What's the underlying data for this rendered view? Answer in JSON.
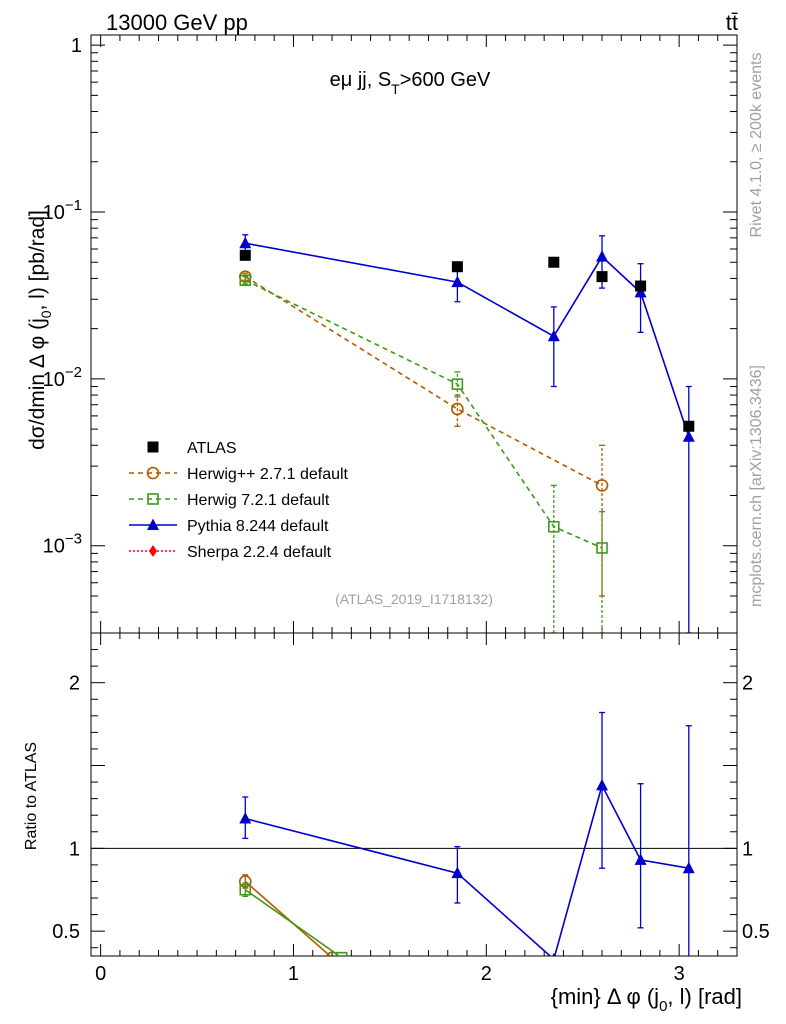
{
  "header": {
    "energy_label": "13000 GeV pp",
    "process_label": "tt̄"
  },
  "side_labels": {
    "rivet": "Rivet 4.1.0, ≥ 200k events",
    "mcplots": "mcplots.cern.ch [arXiv:1306.3436]"
  },
  "chart_data": [
    {
      "type": "line",
      "panel": "main",
      "title": "eμ jj, S_T>600 GeV",
      "ylabel": "dσ/dmin Δ φ (j_0, l) [pb/rad]",
      "yscale": "log",
      "ylim": [
        0.0003,
        1.15
      ],
      "xlim": [
        -0.05,
        3.3
      ],
      "y_tick_labels": [
        "1",
        "10^-1",
        "10^-2",
        "10^-3"
      ],
      "watermark": "(ATLAS_2019_I1718132)",
      "legend_position": "lower-left",
      "series": [
        {
          "name": "ATLAS",
          "color": "#000000",
          "marker": "square",
          "x": [
            0.75,
            1.85,
            2.35,
            2.6,
            2.8,
            3.05
          ],
          "y": [
            0.055,
            0.047,
            0.05,
            0.041,
            0.036,
            0.0052
          ]
        },
        {
          "name": "Herwig++ 2.7.1 default",
          "color": "#b35a00",
          "marker": "open-circle",
          "dash": true,
          "x": [
            0.75,
            1.85,
            2.6
          ],
          "y": [
            0.041,
            0.0066,
            0.0023
          ],
          "yerr_low": [
            0.039,
            0.0052,
            0.0005
          ],
          "yerr_high": [
            0.043,
            0.008,
            0.004
          ]
        },
        {
          "name": "Herwig 7.2.1 default",
          "color": "#3f9a1a",
          "marker": "open-square",
          "dash": true,
          "x": [
            0.75,
            1.85,
            2.35,
            2.6
          ],
          "y": [
            0.039,
            0.0093,
            0.0013,
            0.00097
          ],
          "yerr_low": [
            0.037,
            0.0078,
            0.0003,
            0.0003
          ],
          "yerr_high": [
            0.041,
            0.011,
            0.0023,
            0.0016
          ]
        },
        {
          "name": "Pythia 8.244 default",
          "color": "#0000cc",
          "marker": "triangle",
          "x": [
            0.75,
            1.85,
            2.35,
            2.6,
            2.8,
            3.05
          ],
          "y": [
            0.065,
            0.038,
            0.018,
            0.054,
            0.033,
            0.0045
          ],
          "yerr_low": [
            0.058,
            0.029,
            0.009,
            0.035,
            0.019,
            0.0003
          ],
          "yerr_high": [
            0.073,
            0.046,
            0.027,
            0.072,
            0.049,
            0.009
          ]
        },
        {
          "name": "Sherpa 2.2.4 default",
          "color": "#ff0000",
          "marker": "diamond",
          "dash": true,
          "x": [],
          "y": []
        }
      ]
    },
    {
      "type": "line",
      "panel": "ratio",
      "ylabel": "Ratio to ATLAS",
      "xlabel": "{min} Δ φ (j_0, l) [rad]",
      "ylim": [
        0.35,
        2.3
      ],
      "xlim": [
        -0.05,
        3.3
      ],
      "x_tick_labels": [
        "0",
        "1",
        "2",
        "3"
      ],
      "y_tick_labels": [
        "2",
        "1",
        "0.5"
      ],
      "reference_line": 1,
      "series": [
        {
          "name": "Herwig++ 2.7.1 default",
          "color": "#b35a00",
          "marker": "open-circle",
          "x": [
            0.75,
            1.2
          ],
          "y": [
            0.8,
            0.34
          ],
          "yerr_low": [
            0.76,
            null
          ],
          "yerr_high": [
            0.84,
            null
          ]
        },
        {
          "name": "Herwig 7.2.1 default",
          "color": "#3f9a1a",
          "marker": "open-square",
          "x": [
            0.75,
            1.25
          ],
          "y": [
            0.75,
            0.34
          ],
          "yerr_low": [
            0.71,
            null
          ],
          "yerr_high": [
            0.79,
            null
          ]
        },
        {
          "name": "Pythia 8.244 default",
          "color": "#0000cc",
          "marker": "triangle",
          "x": [
            0.75,
            1.85,
            2.35,
            2.6,
            2.8,
            3.05
          ],
          "y": [
            1.18,
            0.85,
            0.33,
            1.38,
            0.93,
            0.88
          ],
          "yerr_low": [
            1.06,
            0.67,
            0.33,
            0.88,
            0.52,
            0.33
          ],
          "yerr_high": [
            1.31,
            1.01,
            0.33,
            1.82,
            1.39,
            1.74
          ]
        }
      ]
    }
  ]
}
